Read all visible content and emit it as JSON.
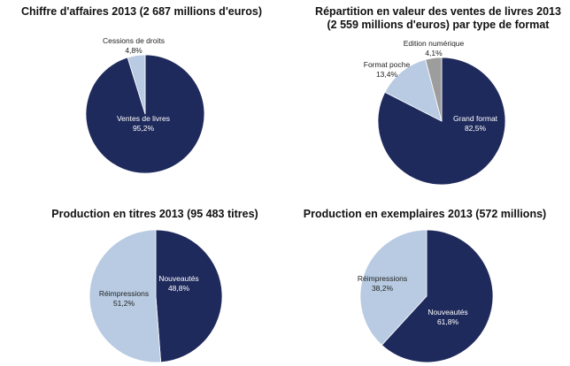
{
  "colors": {
    "dark": "#1f2a5c",
    "light": "#b8cbe2",
    "grey": "#9d9d9d",
    "light_text": "#222222",
    "dark_text": "#ffffff"
  },
  "chart_data": [
    {
      "type": "pie",
      "title": "Chiffre d'affaires 2013 (2 687 millions d'euros)",
      "slices": [
        {
          "label": "Ventes de livres",
          "value": 95.2,
          "value_label": "95,2%",
          "color": "dark"
        },
        {
          "label": "Cessions  de droits",
          "value": 4.8,
          "value_label": "4,8%",
          "color": "light"
        }
      ]
    },
    {
      "type": "pie",
      "title_lines": [
        "Répartition en valeur des ventes de livres 2013",
        "(2 559 millions d'euros) par type de format"
      ],
      "slices": [
        {
          "label": "Grand format",
          "value": 82.5,
          "value_label": "82,5%",
          "color": "dark"
        },
        {
          "label": "Format poche",
          "value": 13.4,
          "value_label": "13,4%",
          "color": "light"
        },
        {
          "label": "Edition numérique",
          "value": 4.1,
          "value_label": "4,1%",
          "color": "grey"
        }
      ]
    },
    {
      "type": "pie",
      "title": "Production en titres 2013 (95 483 titres)",
      "slices": [
        {
          "label": "Nouveautés",
          "value": 48.8,
          "value_label": "48,8%",
          "color": "dark"
        },
        {
          "label": "Réimpressions",
          "value": 51.2,
          "value_label": "51,2%",
          "color": "light"
        }
      ]
    },
    {
      "type": "pie",
      "title": "Production en exemplaires 2013 (572 millions)",
      "slices": [
        {
          "label": "Nouveautés",
          "value": 61.8,
          "value_label": "61,8%",
          "color": "dark"
        },
        {
          "label": "Réimpressions",
          "value": 38.2,
          "value_label": "38,2%",
          "color": "light"
        }
      ]
    }
  ]
}
